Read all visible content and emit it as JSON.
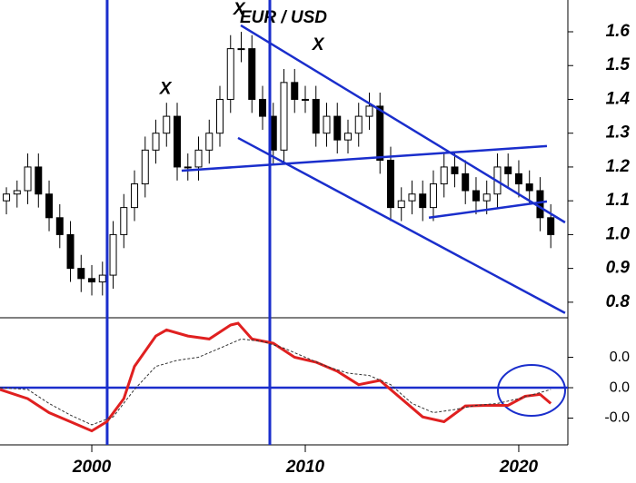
{
  "chart_data": [
    {
      "type": "candlestick",
      "title": "EUR / USD",
      "x": [
        1996.0,
        1996.5,
        1997.0,
        1997.5,
        1998.0,
        1998.5,
        1999.0,
        1999.5,
        2000.0,
        2000.5,
        2001.0,
        2001.5,
        2002.0,
        2002.5,
        2003.0,
        2003.5,
        2004.0,
        2004.5,
        2005.0,
        2005.5,
        2006.0,
        2006.5,
        2007.0,
        2007.5,
        2008.0,
        2008.5,
        2009.0,
        2009.5,
        2010.0,
        2010.5,
        2011.0,
        2011.5,
        2012.0,
        2012.5,
        2013.0,
        2013.5,
        2014.0,
        2014.5,
        2015.0,
        2015.5,
        2016.0,
        2016.5,
        2017.0,
        2017.5,
        2018.0,
        2018.5,
        2019.0,
        2019.5,
        2020.0,
        2020.5,
        2021.0,
        2021.5
      ],
      "open": [
        1.1,
        1.12,
        1.13,
        1.2,
        1.12,
        1.05,
        1.0,
        0.9,
        0.87,
        0.86,
        0.88,
        1.0,
        1.08,
        1.15,
        1.25,
        1.3,
        1.35,
        1.2,
        1.2,
        1.25,
        1.3,
        1.4,
        1.55,
        1.55,
        1.4,
        1.35,
        1.25,
        1.45,
        1.4,
        1.4,
        1.3,
        1.35,
        1.28,
        1.3,
        1.35,
        1.38,
        1.22,
        1.08,
        1.1,
        1.12,
        1.08,
        1.15,
        1.2,
        1.18,
        1.13,
        1.1,
        1.12,
        1.2,
        1.18,
        1.15,
        1.13,
        1.05
      ],
      "high": [
        1.14,
        1.16,
        1.24,
        1.24,
        1.16,
        1.09,
        1.04,
        0.94,
        0.91,
        0.92,
        1.04,
        1.12,
        1.19,
        1.29,
        1.34,
        1.39,
        1.39,
        1.24,
        1.29,
        1.34,
        1.44,
        1.59,
        1.6,
        1.59,
        1.44,
        1.39,
        1.49,
        1.49,
        1.44,
        1.44,
        1.39,
        1.39,
        1.34,
        1.39,
        1.42,
        1.42,
        1.26,
        1.14,
        1.16,
        1.16,
        1.19,
        1.24,
        1.24,
        1.22,
        1.17,
        1.16,
        1.24,
        1.24,
        1.22,
        1.19,
        1.17,
        1.09
      ],
      "low": [
        1.06,
        1.08,
        1.09,
        1.08,
        1.01,
        0.96,
        0.86,
        0.83,
        0.82,
        0.82,
        0.84,
        0.96,
        1.04,
        1.11,
        1.21,
        1.26,
        1.16,
        1.16,
        1.16,
        1.21,
        1.26,
        1.36,
        1.51,
        1.36,
        1.31,
        1.21,
        1.21,
        1.36,
        1.36,
        1.26,
        1.26,
        1.24,
        1.24,
        1.26,
        1.31,
        1.18,
        1.04,
        1.04,
        1.06,
        1.04,
        1.04,
        1.11,
        1.14,
        1.09,
        1.06,
        1.06,
        1.08,
        1.14,
        1.11,
        1.09,
        1.01,
        0.96
      ],
      "close": [
        1.12,
        1.13,
        1.2,
        1.12,
        1.05,
        1.0,
        0.9,
        0.87,
        0.86,
        0.88,
        1.0,
        1.08,
        1.15,
        1.25,
        1.3,
        1.35,
        1.2,
        1.2,
        1.25,
        1.3,
        1.4,
        1.55,
        1.55,
        1.4,
        1.35,
        1.25,
        1.45,
        1.4,
        1.4,
        1.3,
        1.35,
        1.28,
        1.3,
        1.35,
        1.38,
        1.22,
        1.08,
        1.1,
        1.12,
        1.08,
        1.15,
        1.2,
        1.18,
        1.13,
        1.1,
        1.12,
        1.2,
        1.18,
        1.15,
        1.13,
        1.05,
        1.0
      ],
      "xlim": [
        1995.7,
        2022.3
      ],
      "ylim": [
        0.754,
        1.694
      ],
      "yticks": [
        0.8,
        0.9,
        {
          "value": 1,
          "label": "1.0"
        },
        1.1,
        1.2,
        1.3,
        1.4,
        1.5,
        1.6
      ],
      "trendlines": [
        {
          "x": [
            2006.98,
            2022.17
          ],
          "y": [
            1.619,
            1.036
          ]
        },
        {
          "x": [
            2006.85,
            2022.17
          ],
          "y": [
            1.286,
            0.768
          ]
        },
        {
          "x": [
            2004.21,
            2021.32
          ],
          "y": [
            1.189,
            1.262
          ]
        },
        {
          "x": [
            2015.79,
            2021.32
          ],
          "y": [
            1.05,
            1.098
          ]
        }
      ],
      "vlines": [
        2000.72,
        2008.34
      ],
      "annotations": [
        {
          "text": "X",
          "x": 2003.45,
          "y": 1.43
        },
        {
          "text": "X",
          "x": 2006.9,
          "y": 1.665
        },
        {
          "text": "X",
          "x": 2010.6,
          "y": 1.56
        }
      ]
    },
    {
      "type": "line",
      "xlim": [
        1995.7,
        2022.3
      ],
      "ylim": [
        -0.094,
        0.115
      ],
      "yticks": [
        {
          "value": 0.05,
          "label": "0.0"
        },
        {
          "value": 0,
          "label": "0.0"
        },
        {
          "value": -0.05,
          "label": "-0.0"
        }
      ],
      "xticks": [
        2000,
        2010,
        2020
      ],
      "hline": 0,
      "series": [
        {
          "color": "#e02020",
          "dashed": false,
          "x": [
            1995.7,
            1997,
            1998,
            1999,
            2000,
            2000.7,
            2001.5,
            2002,
            2003,
            2003.5,
            2004.5,
            2005.5,
            2006.5,
            2006.85,
            2007.5,
            2008.5,
            2009.5,
            2010.5,
            2011.5,
            2012.5,
            2013.5,
            2014.5,
            2015.5,
            2016.5,
            2017.5,
            2018.5,
            2019.5,
            2020.3,
            2021,
            2021.5
          ],
          "values": [
            -0.003,
            -0.018,
            -0.041,
            -0.056,
            -0.071,
            -0.056,
            -0.018,
            0.035,
            0.085,
            0.095,
            0.085,
            0.08,
            0.103,
            0.106,
            0.08,
            0.073,
            0.05,
            0.042,
            0.027,
            0.005,
            0.012,
            -0.018,
            -0.048,
            -0.056,
            -0.03,
            -0.029,
            -0.029,
            -0.014,
            -0.011,
            -0.026
          ]
        },
        {
          "color": "#333333",
          "dashed": true,
          "x": [
            1995.7,
            1997,
            1998,
            1999,
            2000,
            2001,
            2002,
            2003,
            2004,
            2005,
            2006,
            2007,
            2008,
            2009,
            2010,
            2011,
            2012,
            2013,
            2014,
            2015,
            2016,
            2017,
            2018,
            2019,
            2020,
            2021.5
          ],
          "values": [
            0,
            -0.003,
            -0.026,
            -0.045,
            -0.061,
            -0.048,
            -0.003,
            0.035,
            0.045,
            0.05,
            0.065,
            0.08,
            0.076,
            0.065,
            0.05,
            0.035,
            0.024,
            0.02,
            0.005,
            -0.026,
            -0.041,
            -0.036,
            -0.029,
            -0.026,
            -0.018,
            -0.003
          ]
        }
      ]
    }
  ]
}
